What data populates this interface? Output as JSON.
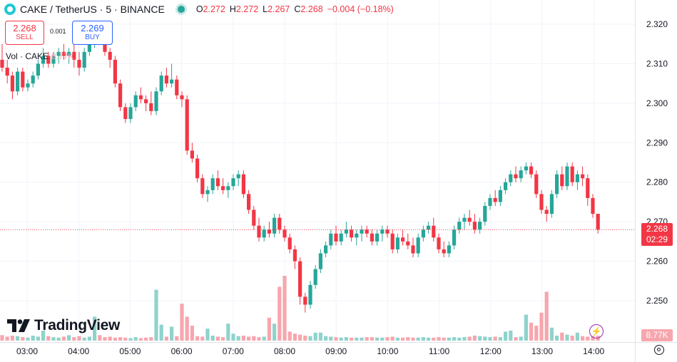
{
  "header": {
    "symbol": "CAKE / TetherUS · 5 · BINANCE",
    "o_key": "O",
    "o_val": "2.272",
    "h_key": "H",
    "h_val": "2.272",
    "l_key": "L",
    "l_val": "2.267",
    "c_key": "C",
    "c_val": "2.268",
    "change": "−0.004 (−0.18%)"
  },
  "trade": {
    "sell_price": "2.268",
    "sell_label": "SELL",
    "spread": "0.001",
    "buy_price": "2.269",
    "buy_label": "BUY"
  },
  "volume": {
    "label": "Vol · CAKE",
    "value": "8.77K"
  },
  "logo_text": "TradingView",
  "price_tag": {
    "price": "2.268",
    "countdown": "02:29"
  },
  "volume_tag": "8.77K",
  "colors": {
    "up": "#26a69a",
    "down": "#f23645",
    "up_vol": "#8fd3cc",
    "down_vol": "#f7a6ae",
    "grid": "#f0f3fa"
  },
  "chart_data": {
    "type": "candlestick",
    "symbol": "CAKE / TetherUS",
    "interval": "5",
    "exchange": "BINANCE",
    "ylim": [
      2.2435,
      2.3235
    ],
    "y_ticks": [
      "2.320",
      "2.310",
      "2.300",
      "2.290",
      "2.280",
      "2.270",
      "2.260",
      "2.250"
    ],
    "x_ticks": [
      "03:00",
      "04:00",
      "05:00",
      "06:00",
      "07:00",
      "08:00",
      "09:00",
      "10:00",
      "11:00",
      "12:00",
      "13:00",
      "14:00"
    ],
    "last_price": 2.268,
    "candles": [
      [
        2.311,
        2.315,
        2.308,
        2.309
      ],
      [
        2.309,
        2.311,
        2.305,
        2.307
      ],
      [
        2.307,
        2.308,
        2.301,
        2.303
      ],
      [
        2.303,
        2.309,
        2.302,
        2.308
      ],
      [
        2.308,
        2.309,
        2.303,
        2.304
      ],
      [
        2.304,
        2.306,
        2.303,
        2.305
      ],
      [
        2.305,
        2.308,
        2.304,
        2.307
      ],
      [
        2.307,
        2.311,
        2.306,
        2.31
      ],
      [
        2.31,
        2.314,
        2.309,
        2.312
      ],
      [
        2.312,
        2.313,
        2.309,
        2.31
      ],
      [
        2.31,
        2.313,
        2.309,
        2.312
      ],
      [
        2.312,
        2.314,
        2.31,
        2.313
      ],
      [
        2.313,
        2.315,
        2.311,
        2.312
      ],
      [
        2.312,
        2.314,
        2.31,
        2.313
      ],
      [
        2.313,
        2.315,
        2.309,
        2.311
      ],
      [
        2.311,
        2.313,
        2.307,
        2.309
      ],
      [
        2.309,
        2.314,
        2.308,
        2.313
      ],
      [
        2.313,
        2.316,
        2.312,
        2.315
      ],
      [
        2.315,
        2.318,
        2.314,
        2.317
      ],
      [
        2.317,
        2.32,
        2.315,
        2.316
      ],
      [
        2.316,
        2.317,
        2.312,
        2.313
      ],
      [
        2.313,
        2.314,
        2.309,
        2.311
      ],
      [
        2.311,
        2.312,
        2.304,
        2.305
      ],
      [
        2.305,
        2.306,
        2.298,
        2.299
      ],
      [
        2.299,
        2.3,
        2.295,
        2.296
      ],
      [
        2.296,
        2.3,
        2.295,
        2.299
      ],
      [
        2.299,
        2.303,
        2.298,
        2.302
      ],
      [
        2.302,
        2.304,
        2.3,
        2.301
      ],
      [
        2.301,
        2.302,
        2.298,
        2.3
      ],
      [
        2.3,
        2.303,
        2.297,
        2.298
      ],
      [
        2.298,
        2.304,
        2.297,
        2.303
      ],
      [
        2.303,
        2.308,
        2.302,
        2.307
      ],
      [
        2.307,
        2.309,
        2.304,
        2.305
      ],
      [
        2.305,
        2.31,
        2.304,
        2.306
      ],
      [
        2.306,
        2.307,
        2.301,
        2.302
      ],
      [
        2.302,
        2.303,
        2.299,
        2.301
      ],
      [
        2.301,
        2.302,
        2.287,
        2.288
      ],
      [
        2.288,
        2.29,
        2.285,
        2.286
      ],
      [
        2.286,
        2.287,
        2.28,
        2.281
      ],
      [
        2.281,
        2.282,
        2.276,
        2.277
      ],
      [
        2.277,
        2.279,
        2.275,
        2.278
      ],
      [
        2.278,
        2.282,
        2.277,
        2.281
      ],
      [
        2.281,
        2.283,
        2.278,
        2.279
      ],
      [
        2.279,
        2.281,
        2.277,
        2.278
      ],
      [
        2.278,
        2.28,
        2.276,
        2.279
      ],
      [
        2.279,
        2.282,
        2.278,
        2.281
      ],
      [
        2.281,
        2.283,
        2.279,
        2.282
      ],
      [
        2.282,
        2.283,
        2.276,
        2.277
      ],
      [
        2.277,
        2.278,
        2.272,
        2.273
      ],
      [
        2.273,
        2.274,
        2.268,
        2.269
      ],
      [
        2.269,
        2.271,
        2.265,
        2.266
      ],
      [
        2.266,
        2.269,
        2.265,
        2.268
      ],
      [
        2.268,
        2.27,
        2.266,
        2.267
      ],
      [
        2.267,
        2.272,
        2.266,
        2.271
      ],
      [
        2.271,
        2.272,
        2.267,
        2.268
      ],
      [
        2.268,
        2.269,
        2.265,
        2.266
      ],
      [
        2.266,
        2.267,
        2.262,
        2.263
      ],
      [
        2.263,
        2.264,
        2.258,
        2.26
      ],
      [
        2.26,
        2.261,
        2.249,
        2.251
      ],
      [
        2.251,
        2.252,
        2.247,
        2.249
      ],
      [
        2.249,
        2.255,
        2.248,
        2.254
      ],
      [
        2.254,
        2.259,
        2.253,
        2.258
      ],
      [
        2.258,
        2.263,
        2.257,
        2.262
      ],
      [
        2.262,
        2.265,
        2.261,
        2.264
      ],
      [
        2.264,
        2.268,
        2.263,
        2.267
      ],
      [
        2.267,
        2.269,
        2.264,
        2.265
      ],
      [
        2.265,
        2.268,
        2.264,
        2.267
      ],
      [
        2.267,
        2.27,
        2.266,
        2.268
      ],
      [
        2.268,
        2.269,
        2.265,
        2.266
      ],
      [
        2.266,
        2.268,
        2.264,
        2.267
      ],
      [
        2.267,
        2.269,
        2.265,
        2.268
      ],
      [
        2.268,
        2.269,
        2.266,
        2.267
      ],
      [
        2.267,
        2.268,
        2.264,
        2.265
      ],
      [
        2.265,
        2.268,
        2.264,
        2.267
      ],
      [
        2.267,
        2.269,
        2.265,
        2.268
      ],
      [
        2.268,
        2.269,
        2.266,
        2.267
      ],
      [
        2.267,
        2.268,
        2.262,
        2.263
      ],
      [
        2.263,
        2.267,
        2.262,
        2.266
      ],
      [
        2.266,
        2.268,
        2.264,
        2.265
      ],
      [
        2.265,
        2.267,
        2.263,
        2.264
      ],
      [
        2.264,
        2.266,
        2.261,
        2.262
      ],
      [
        2.262,
        2.267,
        2.261,
        2.266
      ],
      [
        2.266,
        2.269,
        2.265,
        2.268
      ],
      [
        2.268,
        2.27,
        2.267,
        2.269
      ],
      [
        2.269,
        2.271,
        2.265,
        2.266
      ],
      [
        2.266,
        2.267,
        2.262,
        2.263
      ],
      [
        2.263,
        2.265,
        2.261,
        2.262
      ],
      [
        2.262,
        2.265,
        2.261,
        2.264
      ],
      [
        2.264,
        2.269,
        2.263,
        2.268
      ],
      [
        2.268,
        2.271,
        2.267,
        2.27
      ],
      [
        2.27,
        2.272,
        2.268,
        2.271
      ],
      [
        2.271,
        2.273,
        2.269,
        2.27
      ],
      [
        2.27,
        2.272,
        2.267,
        2.268
      ],
      [
        2.268,
        2.271,
        2.267,
        2.27
      ],
      [
        2.27,
        2.275,
        2.269,
        2.274
      ],
      [
        2.274,
        2.277,
        2.273,
        2.276
      ],
      [
        2.276,
        2.278,
        2.274,
        2.275
      ],
      [
        2.275,
        2.279,
        2.274,
        2.278
      ],
      [
        2.278,
        2.281,
        2.277,
        2.28
      ],
      [
        2.28,
        2.283,
        2.279,
        2.282
      ],
      [
        2.282,
        2.284,
        2.28,
        2.281
      ],
      [
        2.281,
        2.284,
        2.28,
        2.283
      ],
      [
        2.283,
        2.285,
        2.282,
        2.284
      ],
      [
        2.284,
        2.285,
        2.281,
        2.282
      ],
      [
        2.282,
        2.283,
        2.276,
        2.277
      ],
      [
        2.277,
        2.278,
        2.272,
        2.273
      ],
      [
        2.273,
        2.274,
        2.27,
        2.272
      ],
      [
        2.272,
        2.278,
        2.271,
        2.277
      ],
      [
        2.277,
        2.283,
        2.276,
        2.282
      ],
      [
        2.282,
        2.284,
        2.278,
        2.279
      ],
      [
        2.279,
        2.285,
        2.278,
        2.284
      ],
      [
        2.284,
        2.285,
        2.279,
        2.28
      ],
      [
        2.28,
        2.283,
        2.278,
        2.282
      ],
      [
        2.282,
        2.284,
        2.279,
        2.281
      ],
      [
        2.281,
        2.282,
        2.274,
        2.276
      ],
      [
        2.276,
        2.277,
        2.271,
        2.272
      ],
      [
        2.272,
        2.272,
        2.267,
        2.268
      ]
    ],
    "volumes": [
      [
        2,
        0.55
      ],
      [
        0,
        0.4
      ],
      [
        2,
        0.5
      ],
      [
        0,
        0.45
      ],
      [
        0,
        0.35
      ],
      [
        0,
        0.3
      ],
      [
        2,
        0.5
      ],
      [
        0,
        0.4
      ],
      [
        1,
        1.0
      ],
      [
        2,
        0.45
      ],
      [
        0,
        0.35
      ],
      [
        0,
        0.3
      ],
      [
        0,
        0.4
      ],
      [
        2,
        0.55
      ],
      [
        0,
        0.35
      ],
      [
        2,
        0.45
      ],
      [
        0,
        0.3
      ],
      [
        0,
        0.4
      ],
      [
        1,
        2.4
      ],
      [
        2,
        0.55
      ],
      [
        0,
        0.35
      ],
      [
        2,
        0.4
      ],
      [
        0,
        0.3
      ],
      [
        2,
        0.35
      ],
      [
        0,
        0.3
      ],
      [
        0,
        0.25
      ],
      [
        2,
        0.35
      ],
      [
        0,
        0.25
      ],
      [
        0,
        0.3
      ],
      [
        2,
        0.35
      ],
      [
        1,
        5.1
      ],
      [
        1,
        1.6
      ],
      [
        2,
        0.4
      ],
      [
        1,
        1.4
      ],
      [
        2,
        0.45
      ],
      [
        1,
        3.7
      ],
      [
        1,
        2.4
      ],
      [
        1,
        1.5
      ],
      [
        0,
        0.45
      ],
      [
        2,
        0.4
      ],
      [
        1,
        1.2
      ],
      [
        2,
        0.5
      ],
      [
        0,
        0.4
      ],
      [
        0,
        0.35
      ],
      [
        1,
        1.7
      ],
      [
        1,
        0.7
      ],
      [
        0,
        0.45
      ],
      [
        2,
        0.5
      ],
      [
        0,
        0.4
      ],
      [
        2,
        0.45
      ],
      [
        0,
        0.35
      ],
      [
        2,
        0.4
      ],
      [
        1,
        2.3
      ],
      [
        1,
        1.7
      ],
      [
        1,
        5.4
      ],
      [
        1,
        6.5
      ],
      [
        0,
        0.9
      ],
      [
        0,
        0.7
      ],
      [
        0,
        0.6
      ],
      [
        2,
        0.5
      ],
      [
        0,
        0.45
      ],
      [
        0,
        0.8
      ],
      [
        0,
        0.8
      ],
      [
        2,
        0.45
      ],
      [
        0,
        0.4
      ],
      [
        2,
        0.35
      ],
      [
        0,
        0.3
      ],
      [
        2,
        0.35
      ],
      [
        0,
        0.3
      ],
      [
        2,
        0.3
      ],
      [
        0,
        0.3
      ],
      [
        2,
        0.35
      ],
      [
        0,
        0.35
      ],
      [
        2,
        0.3
      ],
      [
        0,
        0.3
      ],
      [
        2,
        0.35
      ],
      [
        0,
        0.4
      ],
      [
        2,
        0.3
      ],
      [
        0,
        0.3
      ],
      [
        2,
        0.35
      ],
      [
        0,
        0.3
      ],
      [
        2,
        0.3
      ],
      [
        0,
        0.35
      ],
      [
        2,
        0.3
      ],
      [
        0,
        0.3
      ],
      [
        2,
        0.35
      ],
      [
        0,
        0.3
      ],
      [
        2,
        0.3
      ],
      [
        0,
        0.35
      ],
      [
        2,
        0.3
      ],
      [
        0,
        0.35
      ],
      [
        2,
        0.4
      ],
      [
        0,
        0.5
      ],
      [
        0,
        0.45
      ],
      [
        2,
        0.4
      ],
      [
        0,
        0.35
      ],
      [
        0,
        0.4
      ],
      [
        2,
        0.35
      ],
      [
        1,
        0.9
      ],
      [
        1,
        1.0
      ],
      [
        2,
        0.35
      ],
      [
        0,
        0.4
      ],
      [
        1,
        2.6
      ],
      [
        1,
        1.8
      ],
      [
        0,
        1.5
      ],
      [
        0,
        2.8
      ],
      [
        0,
        4.9
      ],
      [
        0,
        1.3
      ],
      [
        2,
        0.5
      ],
      [
        0,
        0.8
      ],
      [
        0,
        0.6
      ],
      [
        2,
        0.5
      ],
      [
        0,
        0.8
      ],
      [
        2,
        0.45
      ],
      [
        0,
        0.4
      ],
      [
        0,
        0.45
      ],
      [
        2,
        0.5
      ]
    ]
  }
}
